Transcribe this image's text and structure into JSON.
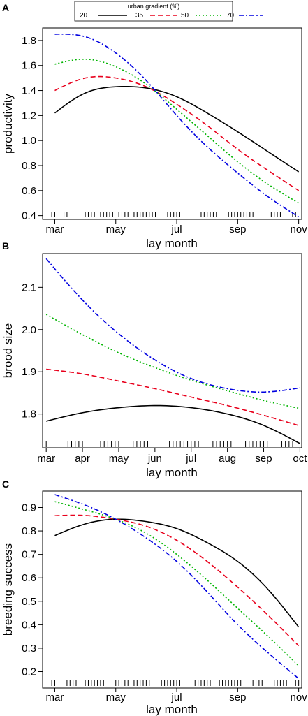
{
  "legend": {
    "title": "urban gradient (%)",
    "entries": [
      {
        "label": "20",
        "color": "#000000",
        "dash": "solid"
      },
      {
        "label": "35",
        "color": "#e8001c",
        "dash": "dashed"
      },
      {
        "label": "50",
        "color": "#00b400",
        "dash": "dotted"
      },
      {
        "label": "70",
        "color": "#0000e0",
        "dash": "dotdash"
      }
    ]
  },
  "chart_data": [
    {
      "panel": "A",
      "type": "line",
      "xlabel": "lay month",
      "ylabel": "productivity",
      "x_tick_labels": [
        "mar",
        "may",
        "jul",
        "sep",
        "nov"
      ],
      "x_tick_values": [
        3,
        5,
        7,
        9,
        11
      ],
      "xlim": [
        2.6,
        11.1
      ],
      "ylim": [
        0.37,
        1.9
      ],
      "y_ticks": [
        0.4,
        0.6,
        0.8,
        1.0,
        1.2,
        1.4,
        1.6,
        1.8
      ],
      "x": [
        3,
        4,
        5,
        6,
        7,
        8,
        9,
        10,
        11
      ],
      "series": [
        {
          "name": "20",
          "values": [
            1.22,
            1.38,
            1.43,
            1.42,
            1.35,
            1.22,
            1.07,
            0.91,
            0.75
          ]
        },
        {
          "name": "35",
          "values": [
            1.4,
            1.5,
            1.5,
            1.43,
            1.29,
            1.12,
            0.93,
            0.76,
            0.6
          ]
        },
        {
          "name": "50",
          "values": [
            1.61,
            1.65,
            1.59,
            1.45,
            1.25,
            1.04,
            0.83,
            0.65,
            0.5
          ]
        },
        {
          "name": "70",
          "values": [
            1.85,
            1.83,
            1.7,
            1.48,
            1.2,
            0.95,
            0.74,
            0.55,
            0.39
          ]
        }
      ],
      "rug": [
        2.9,
        3.0,
        3.3,
        3.4,
        4.0,
        4.1,
        4.2,
        4.3,
        4.5,
        4.6,
        4.7,
        4.8,
        4.9,
        5.1,
        5.2,
        5.3,
        5.4,
        5.6,
        5.7,
        5.8,
        5.9,
        6.0,
        6.1,
        6.2,
        6.3,
        6.7,
        6.8,
        6.9,
        7.0,
        7.1,
        7.8,
        7.9,
        8.0,
        8.1,
        8.2,
        8.3,
        8.7,
        8.8,
        8.9,
        9.0,
        9.1,
        9.2,
        9.3,
        9.4,
        9.5,
        10.1,
        10.2,
        10.3,
        10.4,
        10.8,
        10.9
      ]
    },
    {
      "panel": "B",
      "type": "line",
      "xlabel": "lay month",
      "ylabel": "brood size",
      "x_tick_labels": [
        "mar",
        "apr",
        "may",
        "jun",
        "jul",
        "aug",
        "sep",
        "oct"
      ],
      "x_tick_values": [
        3,
        4,
        5,
        6,
        7,
        8,
        9,
        10
      ],
      "xlim": [
        2.9,
        10.05
      ],
      "ylim": [
        1.72,
        2.18
      ],
      "y_ticks": [
        1.8,
        1.9,
        2.0,
        2.1
      ],
      "x": [
        3,
        4,
        5,
        6,
        7,
        8,
        9,
        10
      ],
      "series": [
        {
          "name": "20",
          "values": [
            1.783,
            1.803,
            1.815,
            1.82,
            1.815,
            1.8,
            1.773,
            1.73
          ]
        },
        {
          "name": "35",
          "values": [
            1.906,
            1.895,
            1.878,
            1.86,
            1.84,
            1.82,
            1.797,
            1.772
          ]
        },
        {
          "name": "50",
          "values": [
            2.036,
            1.988,
            1.945,
            1.91,
            1.88,
            1.855,
            1.832,
            1.813
          ]
        },
        {
          "name": "70",
          "values": [
            2.168,
            2.07,
            1.99,
            1.928,
            1.884,
            1.86,
            1.852,
            1.862
          ]
        }
      ],
      "rug": [
        3.0,
        3.6,
        3.7,
        3.8,
        3.9,
        4.0,
        4.5,
        4.6,
        4.7,
        4.8,
        4.9,
        5.0,
        5.4,
        5.5,
        5.6,
        5.7,
        5.8,
        6.4,
        6.5,
        6.6,
        6.7,
        6.8,
        6.9,
        7.0,
        7.1,
        7.2,
        7.6,
        7.7,
        7.8,
        7.9,
        8.0,
        8.1,
        8.5,
        8.6,
        8.7,
        8.8,
        8.9,
        9.0,
        9.1,
        9.5,
        9.6,
        9.7,
        9.8
      ]
    },
    {
      "panel": "C",
      "type": "line",
      "xlabel": "lay month",
      "ylabel": "breeding success",
      "x_tick_labels": [
        "mar",
        "may",
        "jul",
        "sep",
        "nov"
      ],
      "x_tick_values": [
        3,
        5,
        7,
        9,
        11
      ],
      "xlim": [
        2.6,
        11.1
      ],
      "ylim": [
        0.13,
        0.97
      ],
      "y_ticks": [
        0.2,
        0.3,
        0.4,
        0.5,
        0.6,
        0.7,
        0.8,
        0.9
      ],
      "x": [
        3,
        4,
        5,
        6,
        7,
        8,
        9,
        10,
        11
      ],
      "series": [
        {
          "name": "20",
          "values": [
            0.78,
            0.83,
            0.85,
            0.84,
            0.81,
            0.75,
            0.67,
            0.55,
            0.39
          ]
        },
        {
          "name": "35",
          "values": [
            0.865,
            0.866,
            0.85,
            0.82,
            0.76,
            0.67,
            0.56,
            0.44,
            0.31
          ]
        },
        {
          "name": "50",
          "values": [
            0.925,
            0.89,
            0.85,
            0.79,
            0.7,
            0.59,
            0.47,
            0.35,
            0.225
          ]
        },
        {
          "name": "70",
          "values": [
            0.955,
            0.91,
            0.85,
            0.77,
            0.67,
            0.54,
            0.4,
            0.28,
            0.17
          ]
        }
      ],
      "rug": [
        2.9,
        3.0,
        3.4,
        3.5,
        3.6,
        3.7,
        4.0,
        4.1,
        4.2,
        4.3,
        4.4,
        4.5,
        4.6,
        5.0,
        5.1,
        5.2,
        5.3,
        5.4,
        5.6,
        5.7,
        5.8,
        5.9,
        6.0,
        6.1,
        6.5,
        6.6,
        6.7,
        6.8,
        6.9,
        7.0,
        7.1,
        7.6,
        7.7,
        7.8,
        7.9,
        8.0,
        8.1,
        8.4,
        8.5,
        8.6,
        8.7,
        8.8,
        8.9,
        9.0,
        9.1,
        9.5,
        9.6,
        9.7,
        9.8,
        10.2,
        10.3,
        10.4,
        10.5,
        10.6,
        10.9,
        11.0
      ]
    }
  ]
}
